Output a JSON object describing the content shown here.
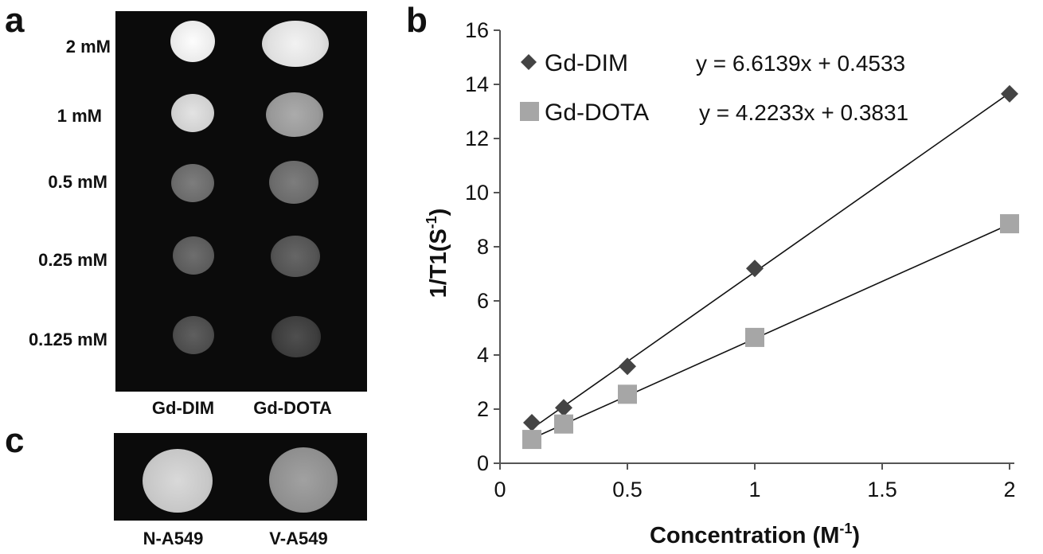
{
  "panel_a": {
    "letter": "a",
    "concentrations": [
      "2 mM",
      "1 mM",
      "0.5 mM",
      "0.25 mM",
      "0.125 mM"
    ],
    "columns": [
      "Gd-DIM",
      "Gd-DOTA"
    ],
    "spot_brightness": {
      "Gd-DIM": [
        0.92,
        0.82,
        0.42,
        0.36,
        0.3
      ],
      "Gd-DOTA": [
        0.88,
        0.6,
        0.42,
        0.33,
        0.24
      ]
    }
  },
  "panel_c": {
    "letter": "c",
    "labels": [
      "N-A549",
      "V-A549"
    ],
    "spot_brightness": [
      0.78,
      0.56
    ]
  },
  "panel_b": {
    "letter": "b"
  },
  "chart_data": {
    "type": "scatter",
    "title": "",
    "xlabel": "Concentration (M",
    "xlabel_superscript": "-1",
    "xlabel_close": ")",
    "ylabel": "1/T1(S",
    "ylabel_superscript": "-1",
    "ylabel_close": ")",
    "xlim": [
      0,
      2
    ],
    "ylim": [
      0,
      16
    ],
    "xticks": [
      0,
      0.5,
      1,
      1.5,
      2
    ],
    "xtick_labels": [
      "0",
      "0.5",
      "1",
      "1.5",
      "2"
    ],
    "yticks": [
      0,
      2,
      4,
      6,
      8,
      10,
      12,
      14,
      16
    ],
    "ytick_labels": [
      "0",
      "2",
      "4",
      "6",
      "8",
      "10",
      "12",
      "14",
      "16"
    ],
    "grid": false,
    "legend_position": "top-left",
    "series": [
      {
        "name": "Gd-DIM",
        "marker": "diamond",
        "color": "#444444",
        "x": [
          0.125,
          0.25,
          0.5,
          1,
          2
        ],
        "y": [
          1.5,
          2.05,
          3.58,
          7.2,
          13.65
        ],
        "equation": "y = 6.6139x + 0.4533",
        "slope": 6.6139,
        "intercept": 0.4533
      },
      {
        "name": "Gd-DOTA",
        "marker": "square",
        "color": "#a6a6a6",
        "x": [
          0.125,
          0.25,
          0.5,
          1,
          2
        ],
        "y": [
          0.88,
          1.45,
          2.55,
          4.65,
          8.85
        ],
        "equation": "y = 4.2233x + 0.3831",
        "slope": 4.2233,
        "intercept": 0.3831
      }
    ]
  }
}
